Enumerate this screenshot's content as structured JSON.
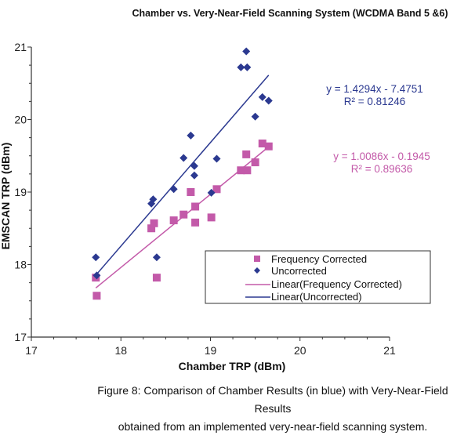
{
  "chart_data": {
    "type": "scatter",
    "title": "Chamber vs. Very-Near-Field Scanning System (WCDMA Band 5 &6)",
    "xlabel": "Chamber TRP (dBm)",
    "ylabel": "EMSCAN TRP (dBm)",
    "xlim": [
      17,
      21
    ],
    "ylim": [
      17,
      21
    ],
    "xticks": [
      "17",
      "18",
      "19",
      "20",
      "21"
    ],
    "yticks": [
      "17",
      "18",
      "19",
      "20",
      "21"
    ],
    "grid": false,
    "legend_position": "center-right",
    "series": [
      {
        "name": "Frequency Corrected",
        "marker": "square",
        "color": "#c35aa9",
        "points": [
          [
            17.72,
            17.82
          ],
          [
            17.73,
            17.57
          ],
          [
            18.34,
            18.5
          ],
          [
            18.37,
            18.57
          ],
          [
            18.4,
            17.82
          ],
          [
            18.59,
            18.61
          ],
          [
            18.7,
            18.69
          ],
          [
            18.78,
            19.0
          ],
          [
            18.83,
            18.8
          ],
          [
            18.83,
            18.58
          ],
          [
            19.01,
            18.65
          ],
          [
            19.07,
            19.04
          ],
          [
            19.4,
            19.52
          ],
          [
            19.34,
            19.3
          ],
          [
            19.41,
            19.3
          ],
          [
            19.5,
            19.41
          ],
          [
            19.58,
            19.67
          ],
          [
            19.65,
            19.63
          ]
        ],
        "trendline": {
          "name": "Linear(Frequency Corrected)",
          "slope": 1.0086,
          "intercept": -0.1945,
          "equation": "y = 1.0086x - 0.1945",
          "r2": "R² = 0.89636",
          "x_range": [
            17.72,
            19.65
          ]
        }
      },
      {
        "name": "Uncorrected",
        "marker": "diamond",
        "color": "#2b3990",
        "points": [
          [
            17.72,
            18.1
          ],
          [
            17.73,
            17.85
          ],
          [
            18.36,
            18.9
          ],
          [
            18.34,
            18.84
          ],
          [
            18.4,
            18.1
          ],
          [
            18.59,
            19.04
          ],
          [
            18.7,
            19.47
          ],
          [
            18.82,
            19.36
          ],
          [
            18.82,
            19.23
          ],
          [
            18.78,
            19.78
          ],
          [
            19.01,
            18.99
          ],
          [
            19.07,
            19.46
          ],
          [
            19.4,
            20.94
          ],
          [
            19.34,
            20.72
          ],
          [
            19.41,
            20.72
          ],
          [
            19.58,
            20.31
          ],
          [
            19.65,
            20.26
          ],
          [
            19.5,
            20.04
          ]
        ],
        "trendline": {
          "name": "Linear(Uncorrected)",
          "slope": 1.4294,
          "intercept": -7.4751,
          "equation": "y = 1.4294x - 7.4751",
          "r2": "R² = 0.81246",
          "x_range": [
            17.73,
            19.65
          ]
        }
      }
    ]
  },
  "caption": {
    "line1": "Figure 8: Comparison of Chamber Results (in blue) with Very-Near-Field Results",
    "line2": "obtained from an implemented  very-near-field scanning system."
  }
}
